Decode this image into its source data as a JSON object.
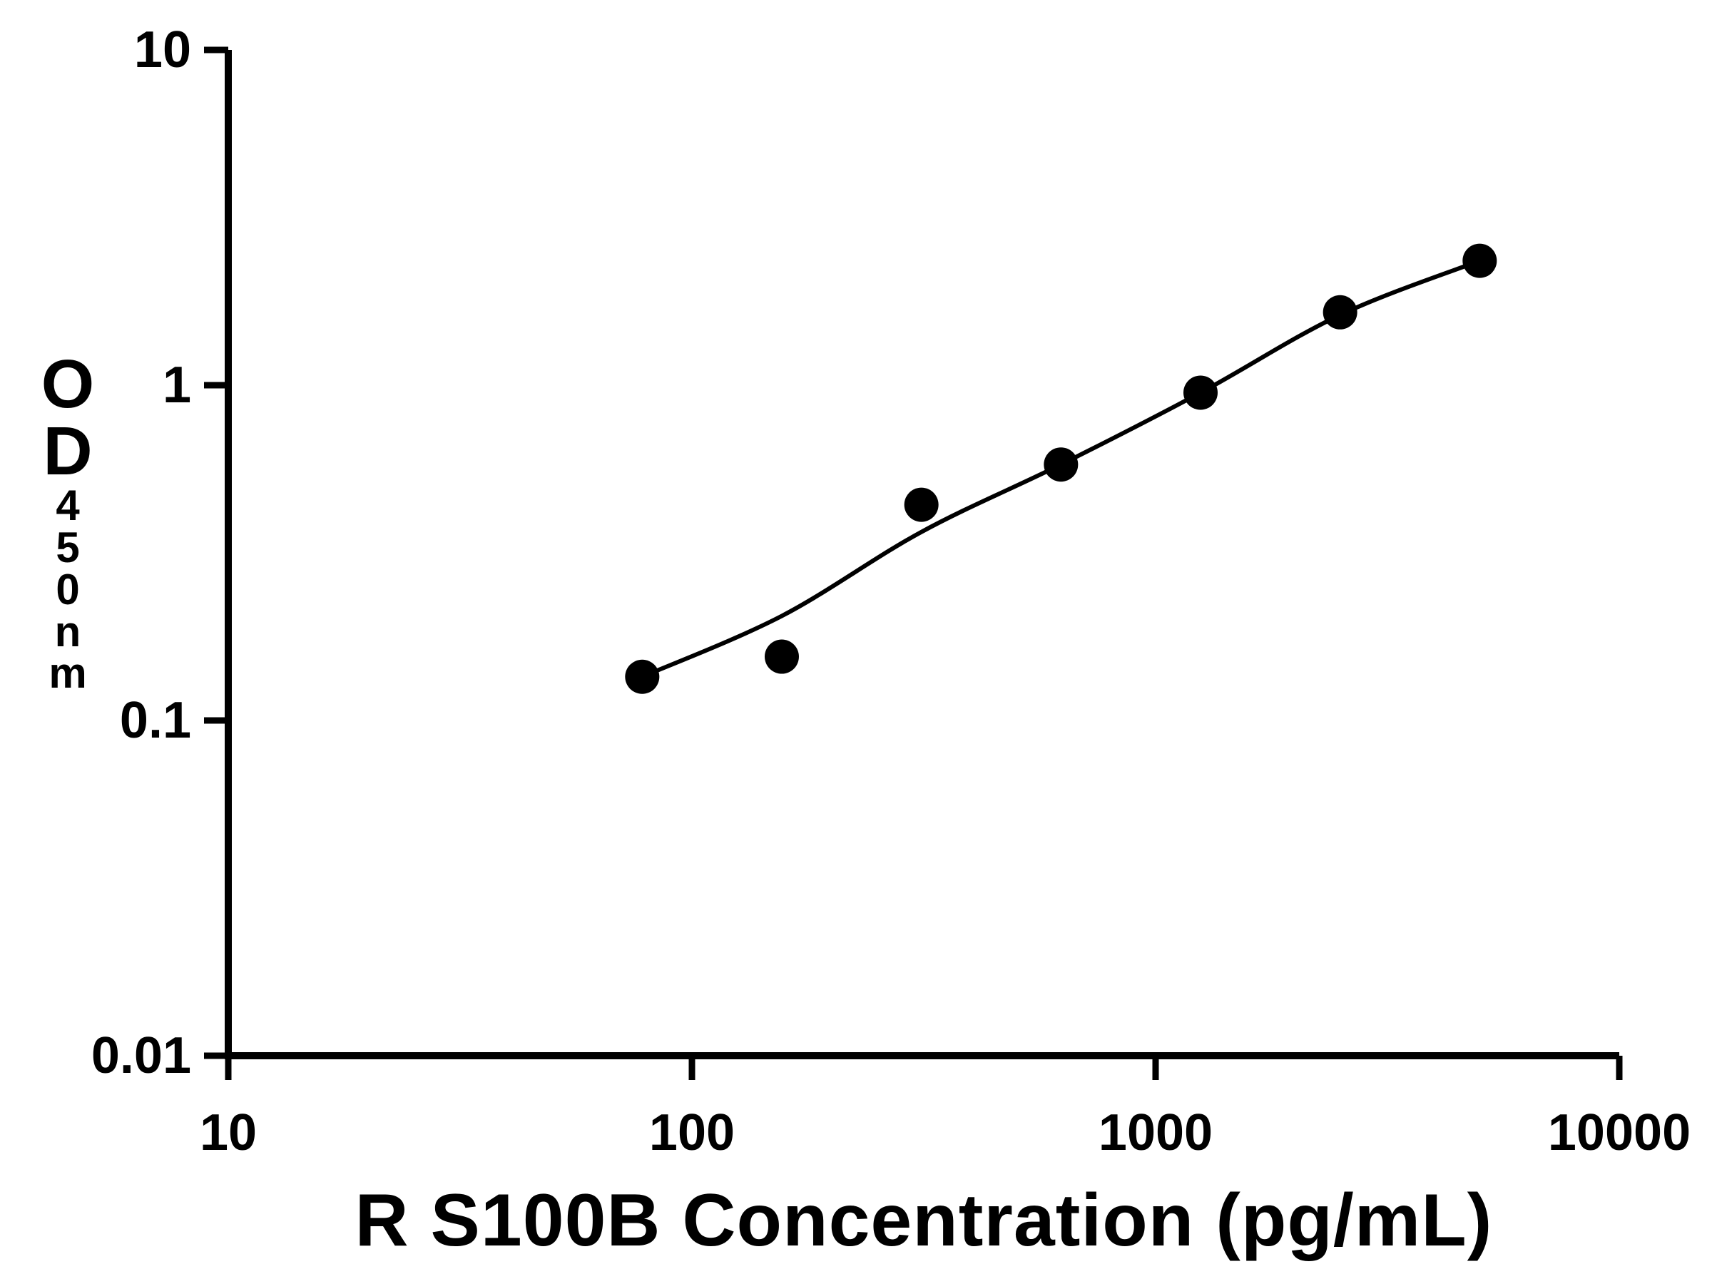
{
  "figure": {
    "background_color": "#ffffff",
    "foreground_color": "#000000"
  },
  "chart_data": {
    "type": "scatter",
    "title": "",
    "xlabel": "R S100B Concentration (pg/mL)",
    "ylabel_main": "OD",
    "ylabel_sub": "450nm",
    "x_scale": "log",
    "y_scale": "log",
    "xlim": [
      10,
      10000
    ],
    "ylim": [
      0.01,
      10
    ],
    "x_ticks": [
      10,
      100,
      1000,
      10000
    ],
    "x_tick_labels": [
      "10",
      "100",
      "1000",
      "10000"
    ],
    "y_ticks": [
      0.01,
      0.1,
      1,
      10
    ],
    "y_tick_labels": [
      "0.01",
      "0.1",
      "1",
      "10"
    ],
    "grid": false,
    "legend": false,
    "axis_color": "#000000",
    "series": [
      {
        "name": "standard-points",
        "type": "scatter",
        "marker": "filled-circle",
        "color": "#000000",
        "points": [
          {
            "x": 78.125,
            "y": 0.135
          },
          {
            "x": 156.25,
            "y": 0.155
          },
          {
            "x": 312.5,
            "y": 0.44
          },
          {
            "x": 625,
            "y": 0.58
          },
          {
            "x": 1250,
            "y": 0.95
          },
          {
            "x": 2500,
            "y": 1.65
          },
          {
            "x": 5000,
            "y": 2.35
          }
        ]
      },
      {
        "name": "fit-curve",
        "type": "line",
        "color": "#000000",
        "points": [
          {
            "x": 78.125,
            "y": 0.135
          },
          {
            "x": 156.25,
            "y": 0.205
          },
          {
            "x": 312.5,
            "y": 0.365
          },
          {
            "x": 625,
            "y": 0.58
          },
          {
            "x": 1250,
            "y": 0.95
          },
          {
            "x": 2500,
            "y": 1.62
          },
          {
            "x": 5000,
            "y": 2.35
          }
        ]
      }
    ]
  }
}
